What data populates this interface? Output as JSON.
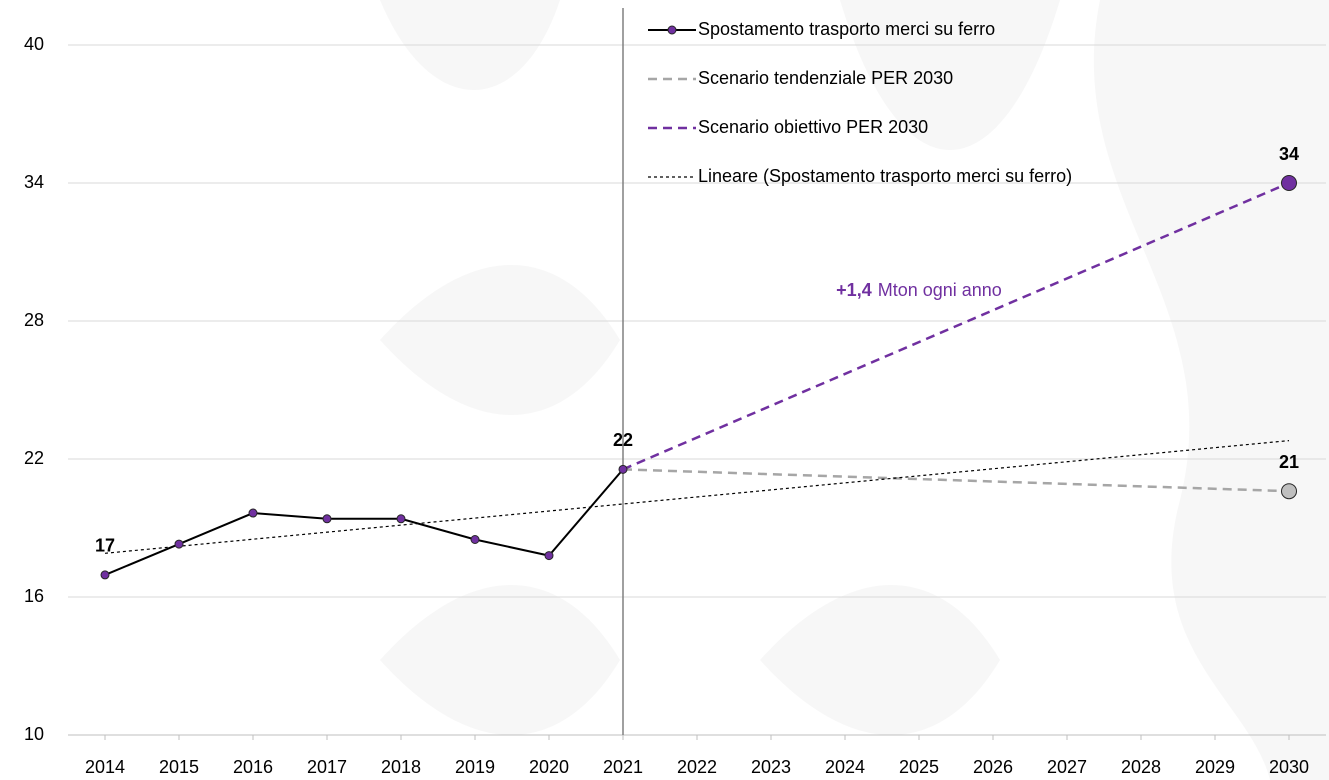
{
  "chart_data": {
    "type": "line",
    "xlim": [
      2013.5,
      2030.5
    ],
    "xticks": [
      2014,
      2015,
      2016,
      2017,
      2018,
      2019,
      2020,
      2021,
      2022,
      2023,
      2024,
      2025,
      2026,
      2027,
      2028,
      2029,
      2030
    ],
    "ylim": [
      10,
      40
    ],
    "yticks": [
      10,
      16,
      22,
      28,
      34,
      40
    ],
    "grid": true,
    "divider_x": 2021,
    "legend": "top-right",
    "annotation": {
      "highlight": "+1,4",
      "text": "Mton ogni anno",
      "color": "#7030a0",
      "x": 2025,
      "y": 29.3
    },
    "series": [
      {
        "name": "Spostamento trasporto merci su ferro",
        "color": "#000000",
        "marker_color": "#7030a0",
        "dash": "solid",
        "marker": "all",
        "x": [
          2014,
          2015,
          2016,
          2017,
          2018,
          2019,
          2020,
          2021
        ],
        "values": [
          16.96,
          18.3,
          19.65,
          19.4,
          19.4,
          18.5,
          17.8,
          21.55
        ],
        "value_labels": [
          "17",
          null,
          null,
          null,
          null,
          null,
          null,
          "22"
        ]
      },
      {
        "name": "Scenario tendenziale PER 2030",
        "color": "#a6a6a6",
        "marker_color": "#bfbfbf",
        "dash": "dash",
        "marker": "end",
        "x": [
          2021,
          2030
        ],
        "values": [
          21.55,
          20.6
        ],
        "value_labels": [
          null,
          "21"
        ]
      },
      {
        "name": "Scenario obiettivo PER 2030",
        "color": "#7030a0",
        "marker_color": "#7030a0",
        "dash": "dash",
        "marker": "end",
        "x": [
          2021,
          2030
        ],
        "values": [
          21.55,
          34.0
        ],
        "value_labels": [
          null,
          "34"
        ]
      },
      {
        "name": "Lineare (Spostamento trasporto merci su ferro)",
        "color": "#000000",
        "dash": "dot",
        "marker": "none",
        "x": [
          2014,
          2030
        ],
        "values": [
          17.9,
          22.8
        ]
      }
    ]
  }
}
